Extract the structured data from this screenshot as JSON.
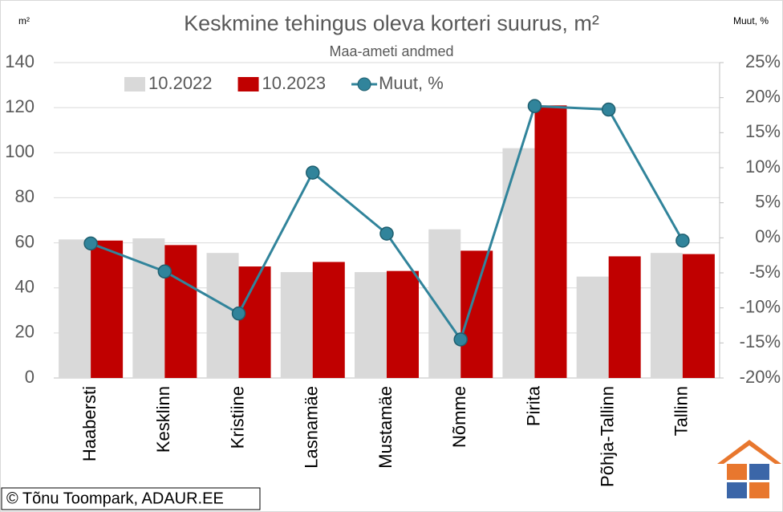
{
  "chart_data": {
    "type": "bar",
    "title": "Keskmine tehingus oleva korteri suurus, m²",
    "subtitle": "Maa-ameti andmed",
    "y_label": "m²",
    "y2_label": "Muut, %",
    "source": "© Tõnu Toompark, ADAUR.EE",
    "categories": [
      "Haabersti",
      "Kesklinn",
      "Kristiine",
      "Lasnamäe",
      "Mustamäe",
      "Nõmme",
      "Pirita",
      "Põhja-Tallinn",
      "Tallinn"
    ],
    "series": [
      {
        "name": "10.2022",
        "color": "#d9d9d9",
        "type": "bar",
        "values": [
          61.5,
          62,
          55.5,
          47,
          47,
          66,
          102,
          45,
          55.5
        ]
      },
      {
        "name": "10.2023",
        "color": "#c00000",
        "type": "bar",
        "values": [
          61,
          59,
          49.5,
          51.5,
          47.5,
          56.5,
          121,
          54,
          55
        ]
      },
      {
        "name": "Muut, %",
        "color": "#31849b",
        "type": "line",
        "axis": "y2",
        "values": [
          -0.8,
          -4.8,
          -10.8,
          9.3,
          0.6,
          -14.5,
          18.8,
          18.3,
          -0.4
        ]
      }
    ],
    "ylim": [
      0,
      140
    ],
    "yticks": [
      0,
      20,
      40,
      60,
      80,
      100,
      120,
      140
    ],
    "y2lim": [
      -20,
      25
    ],
    "y2ticks": [
      {
        "value": -20,
        "label": "-20%"
      },
      {
        "value": -15,
        "label": "-15%"
      },
      {
        "value": -10,
        "label": "-10%"
      },
      {
        "value": -5,
        "label": "-5%"
      },
      {
        "value": 0,
        "label": "0%"
      },
      {
        "value": 5,
        "label": "5%"
      },
      {
        "value": 10,
        "label": "10%"
      },
      {
        "value": 15,
        "label": "15%"
      },
      {
        "value": 20,
        "label": "20%"
      },
      {
        "value": 25,
        "label": "25%"
      }
    ],
    "grid": true,
    "legend": "top"
  }
}
